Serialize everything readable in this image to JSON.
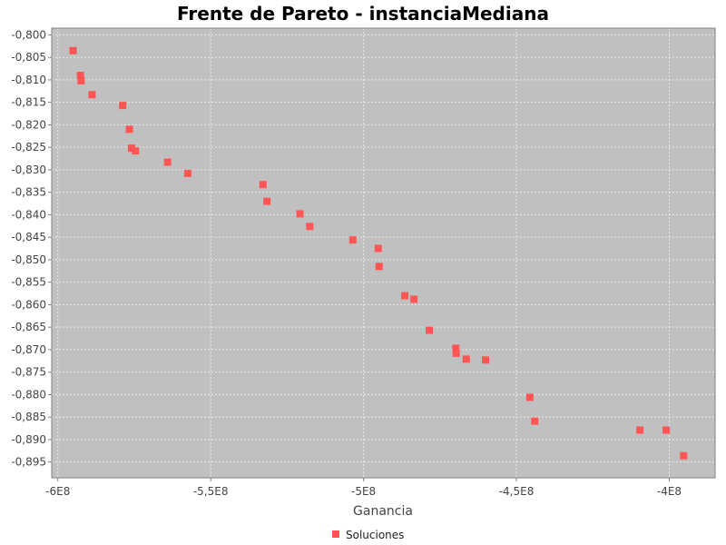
{
  "chart_data": {
    "type": "scatter",
    "title": "Frente de Pareto - instanciaMediana",
    "xlabel": "Ganancia",
    "ylabel": "",
    "xlim": [
      -602000000,
      -385000000
    ],
    "ylim": [
      -0.8985,
      -0.7985
    ],
    "x_ticks": [
      {
        "value": -600000000,
        "label": "-6E8"
      },
      {
        "value": -550000000,
        "label": "-5,5E8"
      },
      {
        "value": -500000000,
        "label": "-5E8"
      },
      {
        "value": -450000000,
        "label": "-4,5E8"
      },
      {
        "value": -400000000,
        "label": "-4E8"
      }
    ],
    "y_ticks": [
      {
        "value": -0.8,
        "label": "-0,800"
      },
      {
        "value": -0.805,
        "label": "-0,805"
      },
      {
        "value": -0.81,
        "label": "-0,810"
      },
      {
        "value": -0.815,
        "label": "-0,815"
      },
      {
        "value": -0.82,
        "label": "-0,820"
      },
      {
        "value": -0.825,
        "label": "-0,825"
      },
      {
        "value": -0.83,
        "label": "-0,830"
      },
      {
        "value": -0.835,
        "label": "-0,835"
      },
      {
        "value": -0.84,
        "label": "-0,840"
      },
      {
        "value": -0.845,
        "label": "-0,845"
      },
      {
        "value": -0.85,
        "label": "-0,850"
      },
      {
        "value": -0.855,
        "label": "-0,855"
      },
      {
        "value": -0.86,
        "label": "-0,860"
      },
      {
        "value": -0.865,
        "label": "-0,865"
      },
      {
        "value": -0.87,
        "label": "-0,870"
      },
      {
        "value": -0.875,
        "label": "-0,875"
      },
      {
        "value": -0.88,
        "label": "-0,880"
      },
      {
        "value": -0.885,
        "label": "-0,885"
      },
      {
        "value": -0.89,
        "label": "-0,890"
      },
      {
        "value": -0.895,
        "label": "-0,895"
      }
    ],
    "grid": true,
    "legend": "bottom-center",
    "colors": {
      "plot_bg": "#c0c0c0",
      "grid": "#e8e8e8",
      "marker": "#ff5555"
    },
    "series": [
      {
        "name": "Soluciones",
        "marker": "square",
        "points": [
          {
            "x": -595000000,
            "y": -0.8035
          },
          {
            "x": -592600000,
            "y": -0.809
          },
          {
            "x": -592400000,
            "y": -0.8102
          },
          {
            "x": -588800000,
            "y": -0.8133
          },
          {
            "x": -578800000,
            "y": -0.8157
          },
          {
            "x": -576600000,
            "y": -0.821
          },
          {
            "x": -575900000,
            "y": -0.8252
          },
          {
            "x": -574600000,
            "y": -0.8258
          },
          {
            "x": -564100000,
            "y": -0.8283
          },
          {
            "x": -557500000,
            "y": -0.8308
          },
          {
            "x": -532900000,
            "y": -0.8333
          },
          {
            "x": -531600000,
            "y": -0.837
          },
          {
            "x": -520800000,
            "y": -0.8398
          },
          {
            "x": -517600000,
            "y": -0.8426
          },
          {
            "x": -503500000,
            "y": -0.8456
          },
          {
            "x": -495200000,
            "y": -0.8475
          },
          {
            "x": -494900000,
            "y": -0.8515
          },
          {
            "x": -486500000,
            "y": -0.858
          },
          {
            "x": -483500000,
            "y": -0.8588
          },
          {
            "x": -478500000,
            "y": -0.8657
          },
          {
            "x": -469800000,
            "y": -0.8697
          },
          {
            "x": -469700000,
            "y": -0.8708
          },
          {
            "x": -466400000,
            "y": -0.8721
          },
          {
            "x": -460100000,
            "y": -0.8723
          },
          {
            "x": -445600000,
            "y": -0.8806
          },
          {
            "x": -444000000,
            "y": -0.8859
          },
          {
            "x": -409600000,
            "y": -0.8879
          },
          {
            "x": -401000000,
            "y": -0.8879
          },
          {
            "x": -395300000,
            "y": -0.8936
          }
        ]
      }
    ]
  }
}
